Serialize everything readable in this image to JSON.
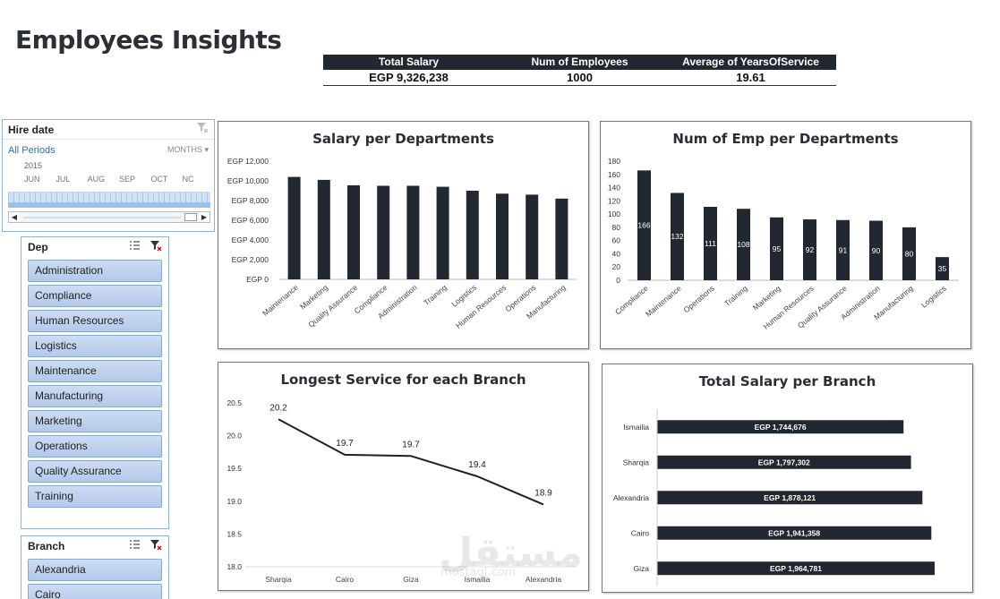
{
  "page_title": "Employees Insights",
  "kpis": {
    "headers": [
      "Total Salary",
      "Num of Employees",
      "Average of YearsOfService"
    ],
    "values": [
      "EGP 9,326,238",
      "1000",
      "19.61"
    ]
  },
  "timeline": {
    "title": "Hire date",
    "periods_label": "All Periods",
    "level_label": "MONTHS",
    "year": "2015",
    "months": [
      "JUN",
      "JUL",
      "AUG",
      "SEP",
      "OCT",
      "NC"
    ]
  },
  "dep_slicer": {
    "title": "Dep",
    "items": [
      "Administration",
      "Compliance",
      "Human Resources",
      "Logistics",
      "Maintenance",
      "Manufacturing",
      "Marketing",
      "Operations",
      "Quality Assurance",
      "Training"
    ]
  },
  "branch_slicer": {
    "title": "Branch",
    "items": [
      "Alexandria",
      "Cairo"
    ]
  },
  "watermark": {
    "text": "مستقل",
    "sub": "mostaql.com"
  },
  "colors": {
    "bar": "#222831",
    "line": "#222222",
    "slicer_border": "#8fb3de"
  },
  "chart_data": [
    {
      "id": "salary_dept",
      "type": "bar",
      "title": "Salary per Departments",
      "categories": [
        "Maintenance",
        "Marketing",
        "Quality Assurance",
        "Compliance",
        "Administration",
        "Training",
        "Logistics",
        "Human Resources",
        "Operations",
        "Manufacturing"
      ],
      "values": [
        10400,
        10100,
        9550,
        9500,
        9500,
        9400,
        9000,
        8700,
        8600,
        8200
      ],
      "yticks": [
        "EGP 0",
        "EGP 2,000",
        "EGP 4,000",
        "EGP 6,000",
        "EGP 8,000",
        "EGP 10,000",
        "EGP 12,000"
      ],
      "ylim": [
        0,
        12000
      ]
    },
    {
      "id": "emp_dept",
      "type": "bar",
      "title": "Num of Emp per Departments",
      "categories": [
        "Compliance",
        "Maintenance",
        "Operations",
        "Training",
        "Marketing",
        "Human Resources",
        "Quality Assurance",
        "Administration",
        "Manufacturing",
        "Logistics"
      ],
      "values": [
        166,
        132,
        111,
        108,
        95,
        92,
        91,
        90,
        80,
        35
      ],
      "labels": [
        "166",
        "132",
        "111",
        "108",
        "95",
        "92",
        "91",
        "90",
        "80",
        "35"
      ],
      "yticks": [
        "0",
        "20",
        "40",
        "60",
        "80",
        "100",
        "120",
        "140",
        "160",
        "180"
      ],
      "ylim": [
        0,
        180
      ]
    },
    {
      "id": "service_branch",
      "type": "line",
      "title": "Longest Service for each Branch",
      "categories": [
        "Sharqia",
        "Cairo",
        "Giza",
        "Ismailia",
        "Alexandria"
      ],
      "values": [
        20.25,
        19.71,
        19.69,
        19.38,
        18.95
      ],
      "labels": [
        "20.2",
        "19.7",
        "19.7",
        "19.4",
        "18.9"
      ],
      "yticks": [
        "18.0",
        "18.5",
        "19.0",
        "19.5",
        "20.0",
        "20.5"
      ],
      "ylim": [
        18.0,
        20.5
      ]
    },
    {
      "id": "salary_branch",
      "type": "bar",
      "orientation": "horizontal",
      "title": "Total Salary per Branch",
      "categories": [
        "Ismailia",
        "Sharqia",
        "Alexandria",
        "Cairo",
        "Giza"
      ],
      "values": [
        1744676,
        1797302,
        1878121,
        1941358,
        1964781
      ],
      "labels": [
        "EGP 1,744,676",
        "EGP 1,797,302",
        "EGP 1,878,121",
        "EGP 1,941,358",
        "EGP 1,964,781"
      ]
    }
  ]
}
